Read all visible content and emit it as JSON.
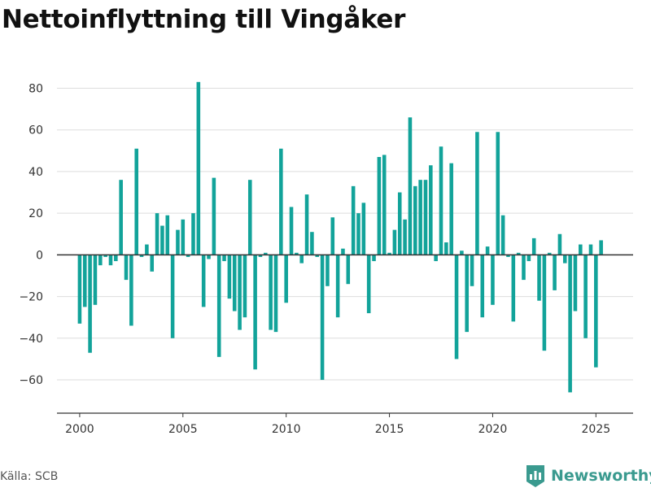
{
  "title": "Nettoinflyttning till Vingåker",
  "source": "Källa: SCB",
  "brand": {
    "name": "Newsworthy",
    "icon": "newsworthy-logo-icon"
  },
  "colors": {
    "bar": "#12a39a",
    "grid": "#dddddd",
    "zero": "#333333",
    "axis": "#333333"
  },
  "chart_data": {
    "type": "bar",
    "title": "Nettoinflyttning till Vingåker",
    "xlabel": "",
    "ylabel": "",
    "xlim": [
      1998.9,
      2026.8
    ],
    "ylim": [
      -76,
      88
    ],
    "yticks": [
      -60,
      -40,
      -20,
      0,
      20,
      40,
      60,
      80
    ],
    "ytick_labels": [
      "−60",
      "−40",
      "−20",
      "0",
      "20",
      "40",
      "60",
      "80"
    ],
    "xticks": [
      2000,
      2005,
      2010,
      2015,
      2020,
      2025
    ],
    "xtick_labels": [
      "2000",
      "2005",
      "2010",
      "2015",
      "2020",
      "2025"
    ],
    "grid": true,
    "legend": "none",
    "bar_width_years": 0.18,
    "x": [
      2000.0,
      2000.25,
      2000.5,
      2000.75,
      2001.0,
      2001.25,
      2001.5,
      2001.75,
      2002.0,
      2002.25,
      2002.5,
      2002.75,
      2003.0,
      2003.25,
      2003.5,
      2003.75,
      2004.0,
      2004.25,
      2004.5,
      2004.75,
      2005.0,
      2005.25,
      2005.5,
      2005.75,
      2006.0,
      2006.25,
      2006.5,
      2006.75,
      2007.0,
      2007.25,
      2007.5,
      2007.75,
      2008.0,
      2008.25,
      2008.5,
      2008.75,
      2009.0,
      2009.25,
      2009.5,
      2009.75,
      2010.0,
      2010.25,
      2010.5,
      2010.75,
      2011.0,
      2011.25,
      2011.5,
      2011.75,
      2012.0,
      2012.25,
      2012.5,
      2012.75,
      2013.0,
      2013.25,
      2013.5,
      2013.75,
      2014.0,
      2014.25,
      2014.5,
      2014.75,
      2015.0,
      2015.25,
      2015.5,
      2015.75,
      2016.0,
      2016.25,
      2016.5,
      2016.75,
      2017.0,
      2017.25,
      2017.5,
      2017.75,
      2018.0,
      2018.25,
      2018.5,
      2018.75,
      2019.0,
      2019.25,
      2019.5,
      2019.75,
      2020.0,
      2020.25,
      2020.5,
      2020.75,
      2021.0,
      2021.25,
      2021.5,
      2021.75,
      2022.0,
      2022.25,
      2022.5,
      2022.75,
      2023.0,
      2023.25,
      2023.5,
      2023.75,
      2024.0,
      2024.25,
      2024.5,
      2024.75,
      2025.0,
      2025.25
    ],
    "values": [
      -33,
      -25,
      -47,
      -24,
      -5,
      -1,
      -5,
      -3,
      36,
      -12,
      -34,
      51,
      -1,
      5,
      -8,
      20,
      14,
      19,
      -40,
      12,
      17,
      -1,
      20,
      83,
      -25,
      -2,
      37,
      -49,
      -3,
      -21,
      -27,
      -36,
      -30,
      36,
      -55,
      -1,
      1,
      -36,
      -37,
      51,
      -23,
      23,
      1,
      -4,
      29,
      11,
      -1,
      -60,
      -15,
      18,
      -30,
      3,
      -14,
      33,
      20,
      25,
      -28,
      -3,
      47,
      48,
      1,
      12,
      30,
      17,
      66,
      33,
      36,
      36,
      43,
      -3,
      52,
      6,
      44,
      -50,
      2,
      -37,
      -15,
      59,
      -30,
      4,
      -24,
      59,
      19,
      -1,
      -32,
      1,
      -12,
      -3,
      8,
      -22,
      -46,
      1,
      -17,
      10,
      -4,
      -66,
      -27,
      5,
      -40,
      5,
      -54,
      7
    ]
  }
}
